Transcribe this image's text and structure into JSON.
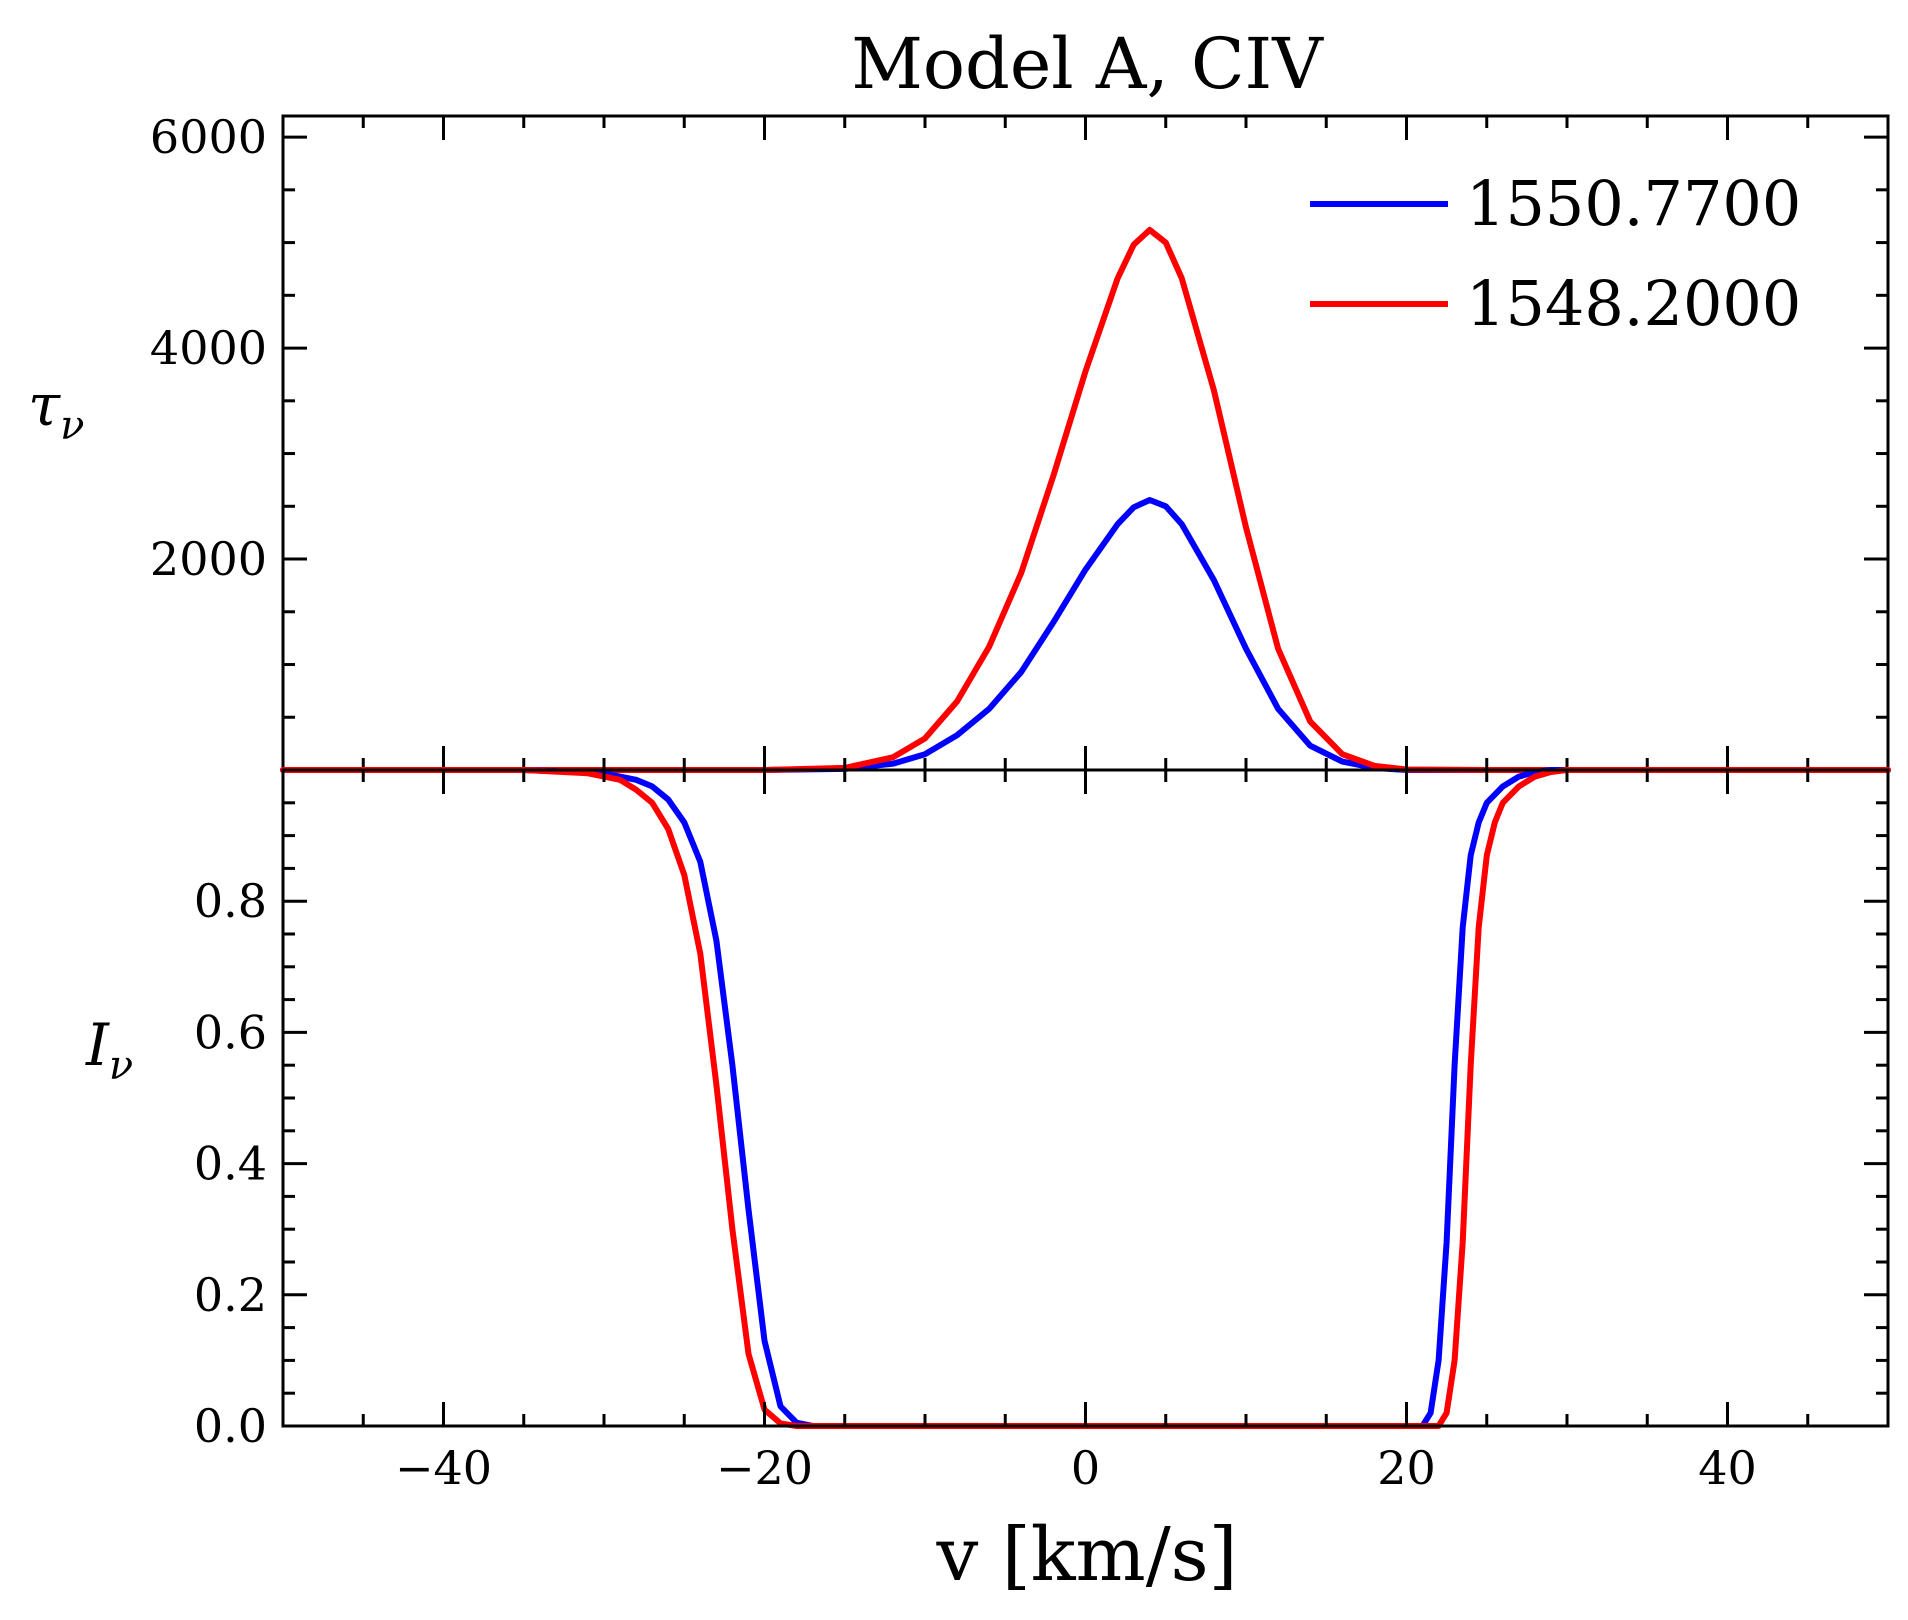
{
  "chart_data": [
    {
      "id": "tau",
      "type": "line",
      "title": "Model A, CIV",
      "ylabel": "τ",
      "ylabel_sub": "ν",
      "xlim": [
        -50,
        50
      ],
      "ylim": [
        0,
        6200
      ],
      "yticks": [
        2000,
        4000,
        6000
      ],
      "ytick_labels": [
        "2000",
        "4000",
        "6000"
      ],
      "legend": {
        "placement": "top-right"
      },
      "series": [
        {
          "name": "1550.7700",
          "color": "#0000ff",
          "x": [
            -50,
            -20,
            -15,
            -12,
            -10,
            -8,
            -6,
            -4,
            -2,
            0,
            2,
            3,
            4,
            5,
            6,
            8,
            10,
            12,
            14,
            16,
            18,
            20,
            25,
            50
          ],
          "y": [
            0,
            0,
            10,
            60,
            150,
            330,
            580,
            930,
            1400,
            1900,
            2330,
            2490,
            2560,
            2500,
            2330,
            1800,
            1150,
            580,
            230,
            80,
            20,
            0,
            0,
            0
          ]
        },
        {
          "name": "1548.2000",
          "color": "#ff0000",
          "x": [
            -50,
            -20,
            -15,
            -12,
            -10,
            -8,
            -6,
            -4,
            -2,
            0,
            2,
            3,
            4,
            5,
            6,
            8,
            10,
            12,
            14,
            16,
            18,
            20,
            25,
            50
          ],
          "y": [
            0,
            0,
            20,
            120,
            300,
            650,
            1170,
            1870,
            2790,
            3780,
            4660,
            4980,
            5120,
            5000,
            4660,
            3600,
            2300,
            1150,
            460,
            150,
            40,
            5,
            0,
            0
          ]
        }
      ]
    },
    {
      "id": "intensity",
      "type": "line",
      "xlabel": "v [km/s]",
      "ylabel": "I",
      "ylabel_sub": "ν",
      "xlim": [
        -50,
        50
      ],
      "ylim": [
        0,
        1.0
      ],
      "yticks": [
        0,
        0.2,
        0.4,
        0.6,
        0.8
      ],
      "ytick_labels": [
        "0.0",
        "0.2",
        "0.4",
        "0.6",
        "0.8"
      ],
      "xticks": [
        -40,
        -20,
        0,
        20,
        40
      ],
      "xtick_labels": [
        "−40",
        "−20",
        "0",
        "20",
        "40"
      ],
      "series": [
        {
          "name": "1550.7700",
          "color": "#0000ff",
          "x": [
            -50,
            -35,
            -30,
            -28,
            -27,
            -26,
            -25,
            -24,
            -23,
            -22,
            -21,
            -20,
            -19,
            -18,
            -17,
            -16,
            21,
            21.5,
            22,
            22.5,
            23,
            23.5,
            24,
            24.5,
            25,
            26,
            27,
            28,
            29,
            30,
            50
          ],
          "y": [
            1.0,
            1.0,
            0.995,
            0.985,
            0.975,
            0.955,
            0.92,
            0.86,
            0.74,
            0.55,
            0.33,
            0.13,
            0.03,
            0.005,
            0,
            0,
            0,
            0.02,
            0.1,
            0.28,
            0.55,
            0.76,
            0.87,
            0.92,
            0.95,
            0.975,
            0.99,
            0.997,
            1.0,
            1.0,
            1.0
          ]
        },
        {
          "name": "1548.2000",
          "color": "#ff0000",
          "x": [
            -50,
            -35,
            -31,
            -29,
            -28,
            -27,
            -26,
            -25,
            -24,
            -23,
            -22,
            -21,
            -20,
            -19,
            -18,
            -17,
            22,
            22.5,
            23,
            23.5,
            24,
            24.5,
            25,
            25.5,
            26,
            27,
            28,
            29,
            30,
            50
          ],
          "y": [
            1.0,
            1.0,
            0.995,
            0.985,
            0.97,
            0.95,
            0.91,
            0.84,
            0.72,
            0.52,
            0.3,
            0.11,
            0.025,
            0.004,
            0,
            0,
            0,
            0.02,
            0.1,
            0.28,
            0.55,
            0.76,
            0.87,
            0.92,
            0.95,
            0.975,
            0.99,
            0.997,
            1.0,
            1.0
          ]
        }
      ]
    }
  ]
}
